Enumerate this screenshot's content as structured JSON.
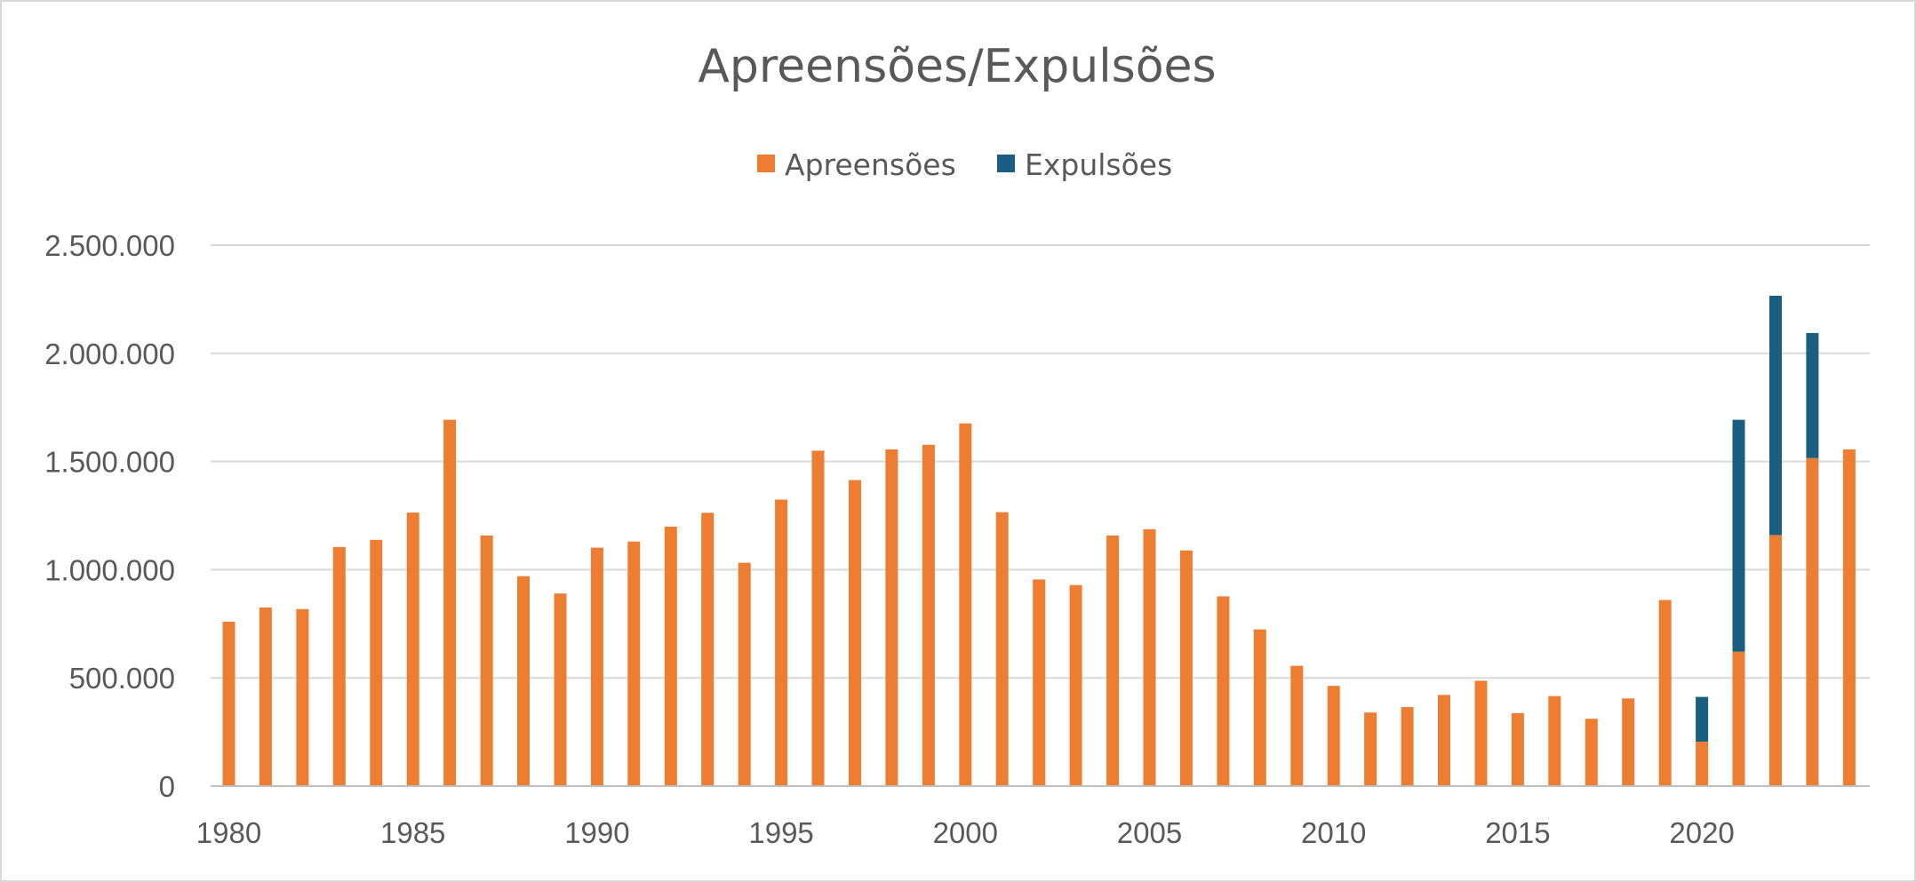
{
  "chart_data": {
    "type": "bar",
    "stacked": true,
    "title": "Apreensões/Expulsões",
    "xlabel": "",
    "ylabel": "",
    "ylim": [
      0,
      2500000
    ],
    "yticks": [
      0,
      500000,
      1000000,
      1500000,
      2000000,
      2500000
    ],
    "ytick_labels": [
      "0",
      "500.000",
      "1.000.000",
      "1.500.000",
      "2.000.000",
      "2.500.000"
    ],
    "xtick_labels": [
      "1980",
      "1985",
      "1990",
      "1995",
      "2000",
      "2005",
      "2010",
      "2015",
      "2020"
    ],
    "grid": true,
    "legend_position": "top-center",
    "categories": [
      1980,
      1981,
      1982,
      1983,
      1984,
      1985,
      1986,
      1987,
      1988,
      1989,
      1990,
      1991,
      1992,
      1993,
      1994,
      1995,
      1996,
      1997,
      1998,
      1999,
      2000,
      2001,
      2002,
      2003,
      2004,
      2005,
      2006,
      2007,
      2008,
      2009,
      2010,
      2011,
      2012,
      2013,
      2014,
      2015,
      2016,
      2017,
      2018,
      2019,
      2020,
      2021,
      2022,
      2023,
      2024
    ],
    "series": [
      {
        "name": "Apreensões",
        "color": "#ed7d31",
        "values": [
          760000,
          825000,
          818000,
          1105000,
          1138000,
          1264000,
          1693000,
          1158000,
          970000,
          890000,
          1102000,
          1130000,
          1199000,
          1263000,
          1032000,
          1324000,
          1550000,
          1414000,
          1556000,
          1577000,
          1676000,
          1266000,
          955000,
          929000,
          1158000,
          1187000,
          1089000,
          877000,
          724000,
          556000,
          463000,
          340000,
          365000,
          421000,
          487000,
          337000,
          416000,
          311000,
          405000,
          860000,
          205000,
          621000,
          1160000,
          1516000,
          1556000
        ]
      },
      {
        "name": "Expulsões",
        "color": "#1a5f7f",
        "values": [
          0,
          0,
          0,
          0,
          0,
          0,
          0,
          0,
          0,
          0,
          0,
          0,
          0,
          0,
          0,
          0,
          0,
          0,
          0,
          0,
          0,
          0,
          0,
          0,
          0,
          0,
          0,
          0,
          0,
          0,
          0,
          0,
          0,
          0,
          0,
          0,
          0,
          0,
          0,
          0,
          207000,
          1072000,
          1106000,
          578000,
          0
        ]
      }
    ]
  }
}
